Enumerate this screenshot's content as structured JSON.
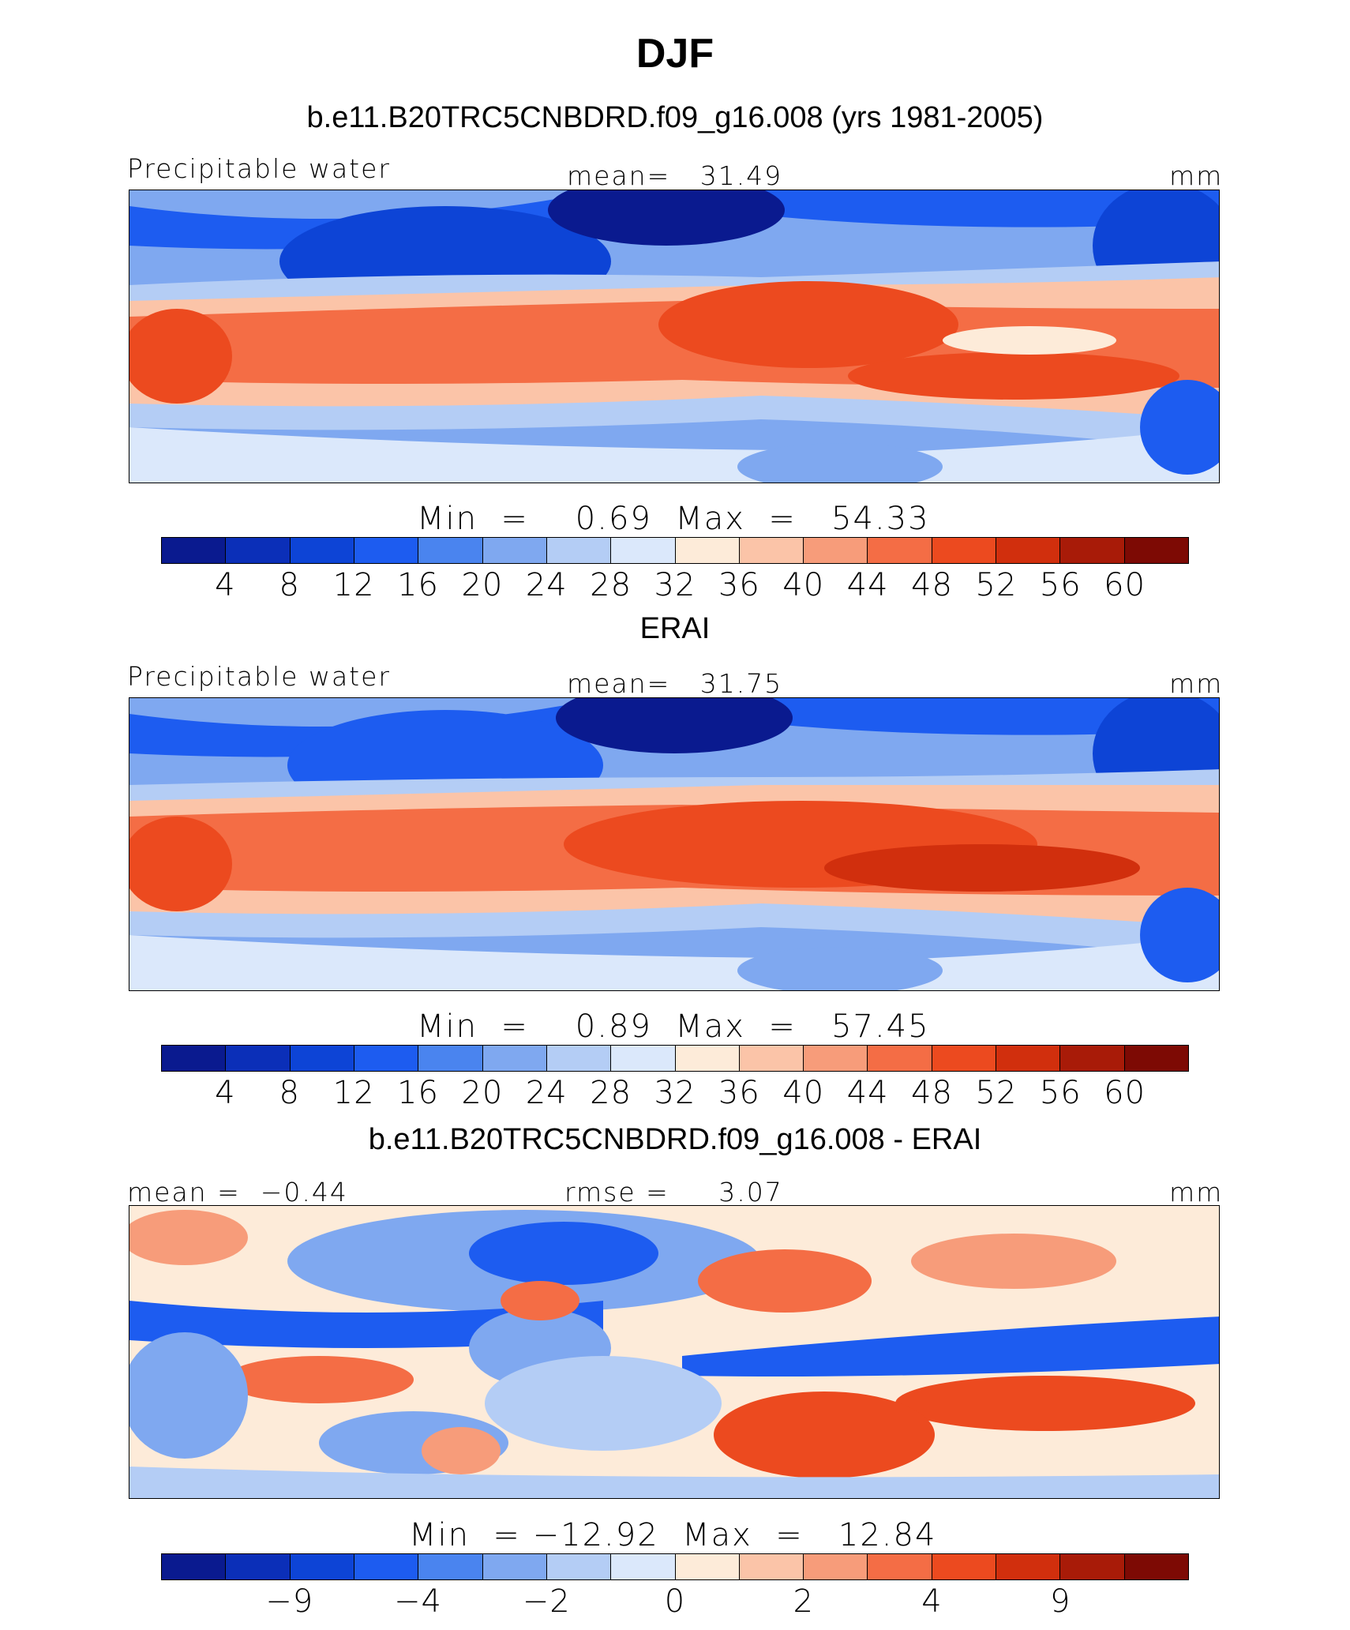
{
  "title": "DJF",
  "palette": [
    "#0a1a8f",
    "#0b2fb8",
    "#0d44d6",
    "#1d5cf0",
    "#4a84ef",
    "#7fa8f0",
    "#b4cdf5",
    "#dbe8fb",
    "#fdebd9",
    "#fbc4a8",
    "#f79c7a",
    "#f46d45",
    "#ec4a1f",
    "#d12f0d",
    "#a81b08",
    "#7d0a04"
  ],
  "panels": [
    {
      "title": "b.e11.B20TRC5CNBDRD.f09_g16.008 (yrs 1981-2005)",
      "left_label": "Precipitable water",
      "center_label": "mean=   31.49",
      "right_label": "mm",
      "minmax": "Min  =    0.69  Max  =   54.33",
      "ticks": [
        "4",
        "8",
        "12",
        "16",
        "20",
        "24",
        "28",
        "32",
        "36",
        "40",
        "44",
        "48",
        "52",
        "56",
        "60"
      ]
    },
    {
      "title": "ERAI",
      "left_label": "Precipitable water",
      "center_label": "mean=   31.75",
      "right_label": "mm",
      "minmax": "Min  =    0.89  Max  =   57.45",
      "ticks": [
        "4",
        "8",
        "12",
        "16",
        "20",
        "24",
        "28",
        "32",
        "36",
        "40",
        "44",
        "48",
        "52",
        "56",
        "60"
      ]
    },
    {
      "title": "b.e11.B20TRC5CNBDRD.f09_g16.008 - ERAI",
      "left_label": "mean =  −0.44",
      "center_label": "rmse =     3.07",
      "right_label": "mm",
      "minmax": "Min  = −12.92  Max  =   12.84",
      "ticks": [
        "−9",
        "−4",
        "−2",
        "0",
        "2",
        "4",
        "9"
      ]
    }
  ]
}
